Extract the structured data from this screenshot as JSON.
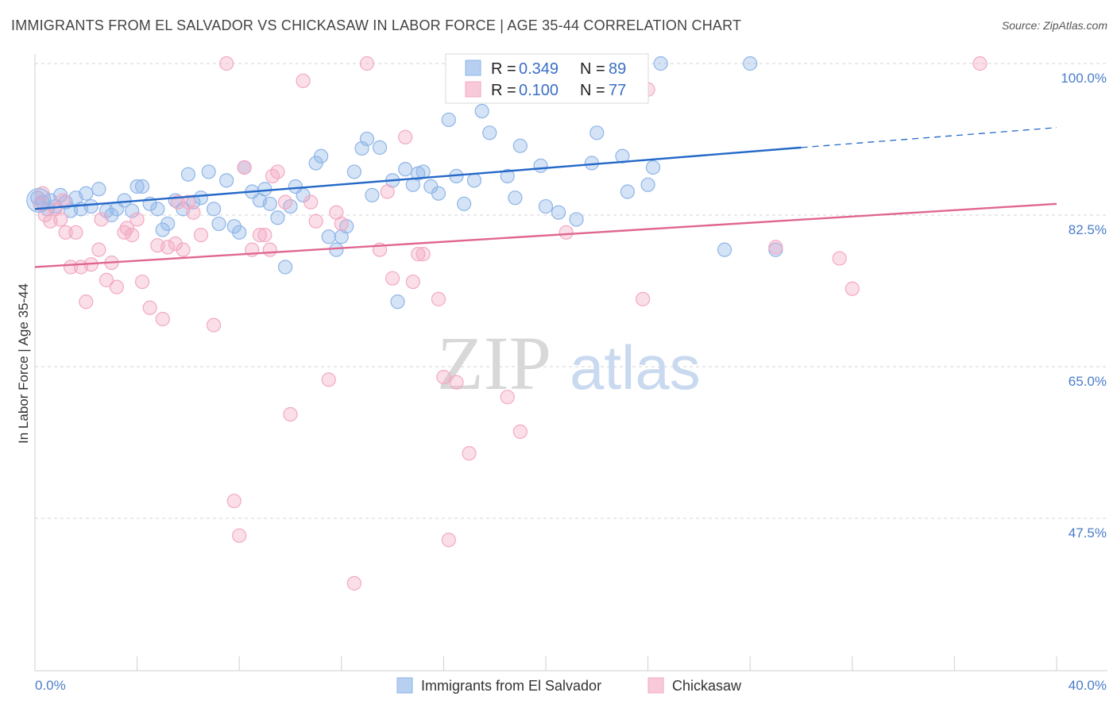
{
  "header": {
    "title": "IMMIGRANTS FROM EL SALVADOR VS CHICKASAW IN LABOR FORCE | AGE 35-44 CORRELATION CHART",
    "source": "Source: ZipAtlas.com"
  },
  "watermark": {
    "part1": "ZIP",
    "part2": "atlas"
  },
  "chart_data": {
    "type": "scatter",
    "ylabel": "In Labor Force | Age 35-44",
    "xlim": [
      0,
      40
    ],
    "ylim": [
      30,
      105
    ],
    "x_ticks": [
      0,
      4,
      8,
      12,
      16,
      20,
      24,
      28,
      32,
      36,
      40
    ],
    "x_tick_labels": [
      {
        "value": 0,
        "label": "0.0%"
      },
      {
        "value": 40,
        "label": "40.0%"
      }
    ],
    "y_ticks": [
      {
        "value": 100,
        "label": "100.0%"
      },
      {
        "value": 82.5,
        "label": "82.5%"
      },
      {
        "value": 65,
        "label": "65.0%"
      },
      {
        "value": 47.5,
        "label": "47.5%"
      }
    ],
    "grid": true,
    "legend_position": "top-center",
    "series": [
      {
        "name": "Immigrants from El Salvador",
        "color": "#8fb5e8",
        "line_color": "#2468c8",
        "R": "0.349",
        "N": "89",
        "trend": {
          "x0": 0,
          "y0": 83.2,
          "x1": 30,
          "y1": 90.3,
          "dash_to_x": 40,
          "dash_to_y": 92.6
        },
        "points": [
          [
            0.1,
            84.5
          ],
          [
            0.3,
            84.0
          ],
          [
            0.5,
            83.2
          ],
          [
            0.6,
            84.2
          ],
          [
            0.8,
            83.5
          ],
          [
            1.0,
            84.8
          ],
          [
            1.2,
            84.0
          ],
          [
            1.4,
            83.0
          ],
          [
            1.6,
            84.5
          ],
          [
            1.8,
            83.2
          ],
          [
            2.0,
            85.0
          ],
          [
            2.2,
            83.5
          ],
          [
            2.5,
            85.5
          ],
          [
            2.8,
            83.0
          ],
          [
            3.0,
            82.5
          ],
          [
            3.2,
            83.2
          ],
          [
            3.5,
            84.2
          ],
          [
            3.8,
            83.0
          ],
          [
            4.0,
            85.8
          ],
          [
            4.2,
            85.8
          ],
          [
            4.5,
            83.8
          ],
          [
            4.8,
            83.2
          ],
          [
            5.0,
            80.8
          ],
          [
            5.2,
            81.5
          ],
          [
            5.5,
            84.2
          ],
          [
            5.8,
            83.2
          ],
          [
            6.0,
            87.2
          ],
          [
            6.2,
            84.0
          ],
          [
            6.5,
            84.5
          ],
          [
            6.8,
            87.5
          ],
          [
            7.0,
            83.2
          ],
          [
            7.2,
            81.5
          ],
          [
            7.5,
            86.5
          ],
          [
            7.8,
            81.2
          ],
          [
            8.0,
            80.5
          ],
          [
            8.2,
            88.0
          ],
          [
            8.5,
            85.2
          ],
          [
            8.8,
            84.2
          ],
          [
            9.0,
            85.5
          ],
          [
            9.2,
            83.8
          ],
          [
            9.5,
            82.2
          ],
          [
            9.8,
            76.5
          ],
          [
            10.0,
            83.5
          ],
          [
            10.2,
            85.8
          ],
          [
            10.5,
            84.8
          ],
          [
            11.0,
            88.5
          ],
          [
            11.2,
            89.3
          ],
          [
            11.5,
            80.0
          ],
          [
            11.8,
            78.5
          ],
          [
            12.0,
            80.0
          ],
          [
            12.2,
            81.2
          ],
          [
            12.5,
            87.5
          ],
          [
            12.8,
            90.2
          ],
          [
            13.0,
            91.3
          ],
          [
            13.2,
            84.8
          ],
          [
            13.5,
            90.3
          ],
          [
            14.0,
            86.5
          ],
          [
            14.2,
            72.5
          ],
          [
            14.5,
            87.8
          ],
          [
            14.8,
            86.0
          ],
          [
            15.0,
            87.3
          ],
          [
            15.2,
            87.5
          ],
          [
            15.5,
            85.8
          ],
          [
            15.8,
            85.0
          ],
          [
            16.2,
            93.5
          ],
          [
            16.5,
            87.0
          ],
          [
            16.8,
            83.8
          ],
          [
            17.2,
            86.5
          ],
          [
            17.8,
            92.0
          ],
          [
            17.5,
            94.5
          ],
          [
            18.0,
            97.0
          ],
          [
            18.5,
            87.0
          ],
          [
            18.8,
            84.5
          ],
          [
            19.0,
            90.5
          ],
          [
            19.8,
            88.2
          ],
          [
            20.0,
            83.5
          ],
          [
            20.5,
            82.8
          ],
          [
            21.2,
            82.0
          ],
          [
            21.8,
            88.5
          ],
          [
            22.0,
            92.0
          ],
          [
            22.8,
            97.0
          ],
          [
            23.0,
            89.3
          ],
          [
            23.2,
            85.2
          ],
          [
            24.0,
            86.0
          ],
          [
            24.2,
            88.0
          ],
          [
            24.5,
            100.0
          ],
          [
            28.0,
            100.0
          ],
          [
            27.0,
            78.5
          ],
          [
            29.0,
            78.5
          ]
        ]
      },
      {
        "name": "Chickasaw",
        "color": "#f3a9c3",
        "line_color": "#e0668f",
        "R": "0.100",
        "N": "77",
        "trend": {
          "x0": 0,
          "y0": 76.5,
          "x1": 40,
          "y1": 83.8
        },
        "points": [
          [
            0.2,
            83.8
          ],
          [
            0.4,
            82.5
          ],
          [
            0.6,
            81.8
          ],
          [
            0.8,
            83.2
          ],
          [
            1.0,
            82.0
          ],
          [
            1.2,
            80.5
          ],
          [
            1.4,
            76.5
          ],
          [
            1.6,
            80.5
          ],
          [
            1.8,
            76.5
          ],
          [
            2.0,
            72.5
          ],
          [
            2.2,
            76.8
          ],
          [
            2.5,
            78.5
          ],
          [
            2.8,
            75.0
          ],
          [
            3.0,
            77.0
          ],
          [
            3.2,
            74.2
          ],
          [
            3.5,
            80.5
          ],
          [
            3.8,
            80.2
          ],
          [
            4.0,
            82.0
          ],
          [
            4.2,
            74.8
          ],
          [
            4.5,
            71.8
          ],
          [
            4.8,
            79.0
          ],
          [
            5.0,
            70.5
          ],
          [
            5.2,
            78.8
          ],
          [
            5.5,
            79.2
          ],
          [
            5.8,
            78.5
          ],
          [
            6.0,
            84.0
          ],
          [
            6.2,
            82.8
          ],
          [
            6.5,
            80.2
          ],
          [
            7.0,
            69.8
          ],
          [
            7.5,
            100.0
          ],
          [
            7.8,
            49.5
          ],
          [
            8.0,
            45.5
          ],
          [
            8.2,
            88.0
          ],
          [
            8.5,
            78.5
          ],
          [
            8.8,
            80.2
          ],
          [
            9.0,
            80.2
          ],
          [
            9.2,
            78.5
          ],
          [
            9.5,
            87.5
          ],
          [
            9.8,
            84.0
          ],
          [
            10.0,
            59.5
          ],
          [
            10.5,
            98.0
          ],
          [
            10.8,
            84.0
          ],
          [
            11.0,
            81.8
          ],
          [
            11.5,
            63.5
          ],
          [
            11.8,
            82.8
          ],
          [
            12.0,
            81.5
          ],
          [
            12.5,
            40.0
          ],
          [
            13.0,
            100.0
          ],
          [
            13.5,
            78.5
          ],
          [
            13.8,
            85.2
          ],
          [
            14.0,
            75.2
          ],
          [
            14.5,
            91.5
          ],
          [
            14.8,
            74.8
          ],
          [
            15.0,
            78.0
          ],
          [
            15.2,
            78.0
          ],
          [
            15.8,
            72.8
          ],
          [
            16.0,
            63.8
          ],
          [
            16.2,
            45.0
          ],
          [
            16.5,
            63.2
          ],
          [
            17.0,
            55.0
          ],
          [
            18.0,
            100.0
          ],
          [
            18.5,
            61.5
          ],
          [
            19.0,
            57.5
          ],
          [
            20.8,
            80.5
          ],
          [
            21.5,
            100.0
          ],
          [
            23.8,
            72.8
          ],
          [
            24.0,
            97.0
          ],
          [
            29.0,
            78.8
          ],
          [
            31.5,
            77.5
          ],
          [
            32.0,
            74.0
          ],
          [
            37.0,
            100.0
          ],
          [
            0.3,
            85.0
          ],
          [
            1.1,
            84.2
          ],
          [
            2.6,
            82.0
          ],
          [
            3.6,
            81.0
          ],
          [
            5.6,
            84.0
          ],
          [
            9.3,
            87.0
          ]
        ]
      }
    ]
  },
  "legend": {
    "r_label": "R =",
    "n_label": "N ="
  }
}
